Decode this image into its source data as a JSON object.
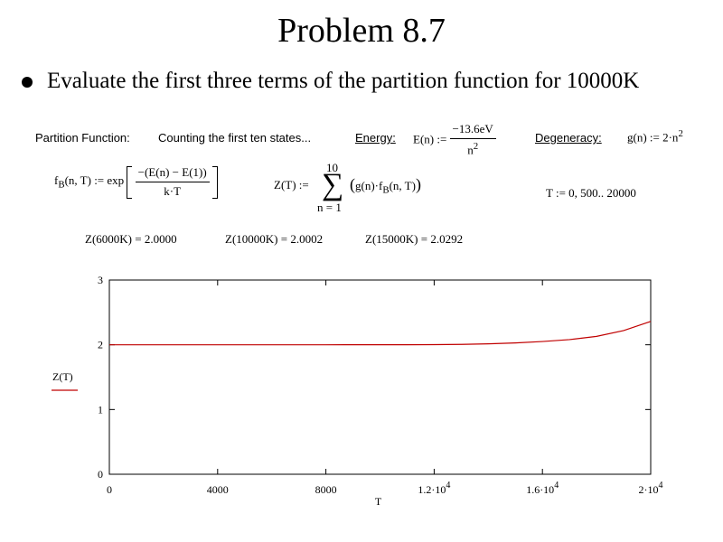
{
  "title": "Problem 8.7",
  "bullet": "Evaluate the first three terms of the partition function for 10000K",
  "labels": {
    "partition_function": "Partition Function:",
    "counting": "Counting the first ten states...",
    "energy": "Energy:",
    "degeneracy": "Degeneracy:"
  },
  "equations": {
    "energy_lhs": "E(n) :=",
    "energy_num": "−13.6eV",
    "energy_den": "n",
    "energy_den_exp": "2",
    "degeneracy": "g(n) := 2·n",
    "degeneracy_exp": "2",
    "fb_lhs_f": "f",
    "fb_lhs_sub": "B",
    "fb_lhs_rest": "(n, T) := exp",
    "fb_num": "−(E(n) − E(1))",
    "fb_den": "k·T",
    "z_lhs": "Z(T) :=",
    "z_upper": "10",
    "z_lower": "n = 1",
    "z_body_pre": "g(n)·f",
    "z_body_sub": "B",
    "z_body_post": "(n, T)",
    "t_range": "T := 0, 500.. 20000"
  },
  "results": [
    "Z(6000K) = 2.0000",
    "Z(10000K) = 2.0002",
    "Z(15000K) = 2.0292"
  ],
  "chart_data": {
    "type": "line",
    "xlabel": "T",
    "ylabel": "Z(T)",
    "xlim": [
      0,
      20000
    ],
    "ylim": [
      0,
      3
    ],
    "x_ticks": [
      {
        "value": 0,
        "mant": "0",
        "exp": ""
      },
      {
        "value": 4000,
        "mant": "4000",
        "exp": ""
      },
      {
        "value": 8000,
        "mant": "8000",
        "exp": ""
      },
      {
        "value": 12000,
        "mant": "1.2·10",
        "exp": "4"
      },
      {
        "value": 16000,
        "mant": "1.6·10",
        "exp": "4"
      },
      {
        "value": 20000,
        "mant": "2·10",
        "exp": "4"
      }
    ],
    "y_ticks": [
      0,
      1,
      2,
      3
    ],
    "line_color": "#c00000",
    "series": [
      {
        "x": [
          0,
          2000,
          4000,
          6000,
          8000,
          10000,
          11000,
          12000,
          13000,
          14000,
          15000,
          16000,
          17000,
          18000,
          19000,
          20000
        ],
        "y": [
          2.0,
          2.0,
          2.0,
          2.0,
          2.0,
          2.0002,
          2.0007,
          2.002,
          2.006,
          2.015,
          2.029,
          2.05,
          2.08,
          2.13,
          2.22,
          2.36
        ]
      }
    ]
  }
}
